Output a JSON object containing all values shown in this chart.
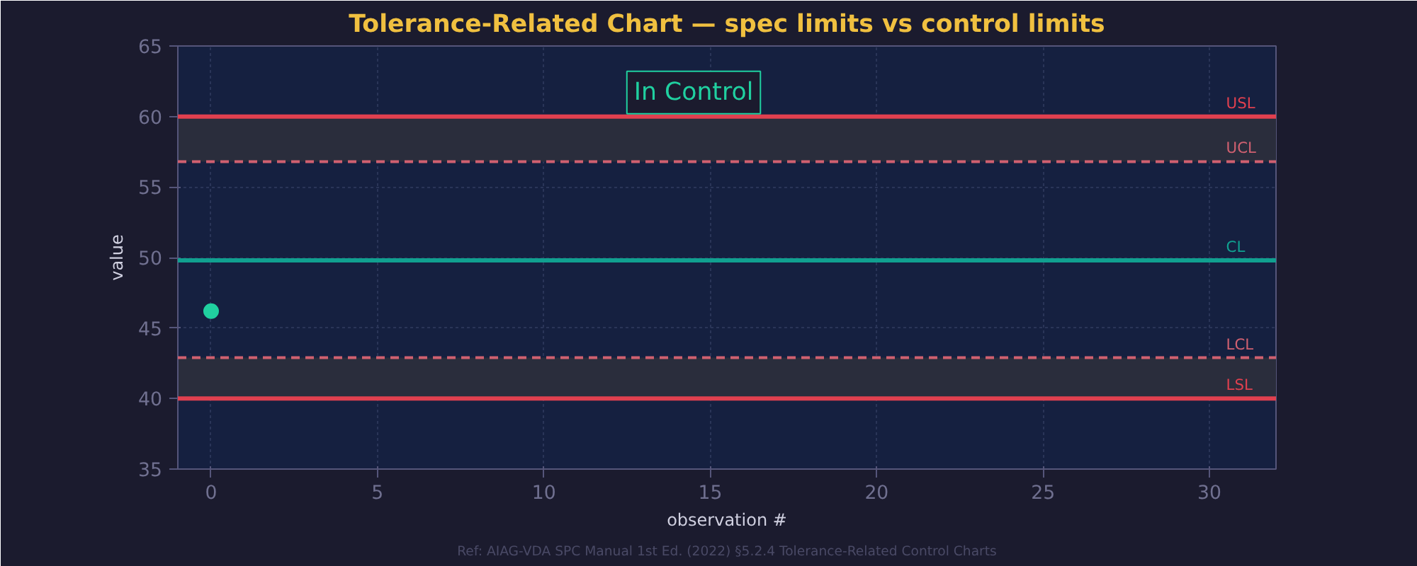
{
  "chart_data": {
    "type": "scatter",
    "title": "Tolerance-Related Chart — spec limits vs control limits",
    "xlabel": "observation #",
    "ylabel": "value",
    "x": [
      0
    ],
    "series": [
      {
        "color": "#20d0a0",
        "values": [
          46.2
        ]
      }
    ],
    "marker": "circle",
    "xlim": [
      -1,
      32
    ],
    "xticks": [
      0,
      5,
      10,
      15,
      20,
      25,
      30
    ],
    "ylim": [
      35,
      65
    ],
    "yticks": [
      35,
      40,
      45,
      50,
      55,
      60,
      65
    ],
    "grid": true,
    "ref_lines": [
      {
        "axis": "y",
        "value": 60,
        "label": "USL",
        "color": "#e0404f",
        "line_style": "solid"
      },
      {
        "axis": "y",
        "value": 56.8,
        "label": "UCL",
        "color": "#d06070",
        "line_style": "dashed"
      },
      {
        "axis": "y",
        "value": 49.8,
        "label": "CL",
        "color": "#10a090",
        "line_style": "solid"
      },
      {
        "axis": "y",
        "value": 42.9,
        "label": "LCL",
        "color": "#d06070",
        "line_style": "dashed"
      },
      {
        "axis": "y",
        "value": 40,
        "label": "LSL",
        "color": "#e0404f",
        "line_style": "solid"
      }
    ],
    "bands": [
      {
        "axis": "y",
        "from": 56.8,
        "to": 60,
        "color": "#2a2d3c"
      },
      {
        "axis": "y",
        "from": 40,
        "to": 42.9,
        "color": "#2a2d3c"
      }
    ],
    "annotations": [
      "In Control",
      "Ref: AIAG-VDA SPC Manual 1st Ed. (2022) §5.2.4 Tolerance-Related Control Charts"
    ]
  }
}
